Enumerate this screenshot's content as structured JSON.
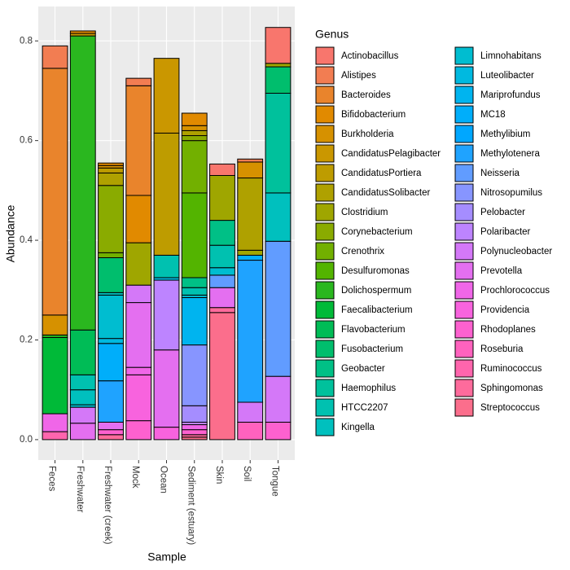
{
  "chart_data": {
    "type": "stacked_bar",
    "x_label": "Sample",
    "y_label": "Abundance",
    "legend_title": "Genus",
    "categories": [
      "Feces",
      "Freshwater",
      "Freshwater (creek)",
      "Mock",
      "Ocean",
      "Sediment (estuary)",
      "Skin",
      "Soil",
      "Tongue"
    ],
    "ylim": [
      -0.041,
      0.869
    ],
    "yticks": [
      {
        "value": 0,
        "label": "0.0"
      },
      {
        "value": 0.2,
        "label": "0.2"
      },
      {
        "value": 0.4,
        "label": "0.4"
      },
      {
        "value": 0.6,
        "label": "0.6"
      },
      {
        "value": 0.8,
        "label": "0.8"
      }
    ],
    "grid": true,
    "series": [
      {
        "name": "Actinobacillus",
        "color": "#F8766D",
        "values": [
          0,
          0,
          0,
          0,
          0,
          0,
          0.023,
          0,
          0.072
        ]
      },
      {
        "name": "Alistipes",
        "color": "#F27D52",
        "values": [
          0.045,
          0,
          0,
          0.015,
          0,
          0,
          0,
          0.006,
          0
        ]
      },
      {
        "name": "Bacteroides",
        "color": "#E9842C",
        "values": [
          0.495,
          0,
          0,
          0.22,
          0,
          0,
          0,
          0,
          0
        ]
      },
      {
        "name": "Bifidobacterium",
        "color": "#E18A00",
        "values": [
          0,
          0.005,
          0.005,
          0.095,
          0,
          0.025,
          0,
          0,
          0
        ]
      },
      {
        "name": "Burkholderia",
        "color": "#D69100",
        "values": [
          0.04,
          0,
          0.005,
          0,
          0,
          0.01,
          0,
          0.032,
          0
        ]
      },
      {
        "name": "CandidatusPelagibacter",
        "color": "#CA9700",
        "values": [
          0,
          0.005,
          0,
          0,
          0.15,
          0,
          0,
          0,
          0
        ]
      },
      {
        "name": "CandidatusPortiera",
        "color": "#BE9C00",
        "values": [
          0,
          0,
          0.01,
          0,
          0.245,
          0,
          0,
          0,
          0
        ]
      },
      {
        "name": "CandidatusSolibacter",
        "color": "#AFA100",
        "values": [
          0,
          0,
          0.025,
          0,
          0,
          0.01,
          0,
          0.145,
          0
        ]
      },
      {
        "name": "Clostridium",
        "color": "#9FA600",
        "values": [
          0,
          0,
          0,
          0.085,
          0,
          0,
          0.09,
          0.01,
          0.007
        ]
      },
      {
        "name": "Corynebacterium",
        "color": "#8AAB00",
        "values": [
          0,
          0,
          0.135,
          0,
          0,
          0.01,
          0,
          0,
          0
        ]
      },
      {
        "name": "Crenothrix",
        "color": "#72B000",
        "values": [
          0,
          0,
          0.01,
          0,
          0,
          0.105,
          0,
          0,
          0
        ]
      },
      {
        "name": "Desulfuromonas",
        "color": "#53B400",
        "values": [
          0,
          0,
          0,
          0,
          0,
          0.17,
          0,
          0,
          0
        ]
      },
      {
        "name": "Dolichospermum",
        "color": "#2AB71F",
        "values": [
          0.005,
          0.59,
          0,
          0,
          0,
          0,
          0,
          0,
          0
        ]
      },
      {
        "name": "Faecalibacterium",
        "color": "#00BA38",
        "values": [
          0.153,
          0,
          0,
          0,
          0,
          0,
          0,
          0,
          0
        ]
      },
      {
        "name": "Flavobacterium",
        "color": "#00BC56",
        "values": [
          0,
          0.09,
          0,
          0,
          0,
          0,
          0,
          0,
          0
        ]
      },
      {
        "name": "Fusobacterium",
        "color": "#00BE6D",
        "values": [
          0,
          0,
          0.07,
          0,
          0,
          0,
          0,
          0,
          0.053
        ]
      },
      {
        "name": "Geobacter",
        "color": "#00C086",
        "values": [
          0,
          0,
          0,
          0,
          0,
          0.02,
          0.05,
          0,
          0
        ]
      },
      {
        "name": "Haemophilus",
        "color": "#00C19C",
        "values": [
          0,
          0,
          0,
          0,
          0,
          0,
          0,
          0,
          0.2
        ]
      },
      {
        "name": "HTCC2207",
        "color": "#00C1B0",
        "values": [
          0,
          0.03,
          0,
          0,
          0.045,
          0.015,
          0.045,
          0,
          0
        ]
      },
      {
        "name": "Kingella",
        "color": "#00C0BE",
        "values": [
          0,
          0.03,
          0.005,
          0,
          0,
          0,
          0,
          0,
          0.097
        ]
      },
      {
        "name": "Limnohabitans",
        "color": "#00BDD0",
        "values": [
          0,
          0.005,
          0.087,
          0,
          0,
          0.005,
          0.015,
          0,
          0
        ]
      },
      {
        "name": "Luteolibacter",
        "color": "#00B9E0",
        "values": [
          0,
          0,
          0.01,
          0,
          0.005,
          0,
          0,
          0,
          0
        ]
      },
      {
        "name": "Mariprofundus",
        "color": "#00B4EF",
        "values": [
          0,
          0,
          0,
          0,
          0,
          0.095,
          0,
          0,
          0
        ]
      },
      {
        "name": "MC18",
        "color": "#00AEFA",
        "values": [
          0,
          0,
          0.075,
          0,
          0,
          0,
          0,
          0.01,
          0
        ]
      },
      {
        "name": "Methylibium",
        "color": "#00A7FF",
        "values": [
          0,
          0,
          0,
          0,
          0,
          0,
          0,
          0,
          0
        ]
      },
      {
        "name": "Methylotenera",
        "color": "#1FA3FF",
        "values": [
          0,
          0,
          0.083,
          0,
          0,
          0,
          0,
          0.285,
          0
        ]
      },
      {
        "name": "Neisseria",
        "color": "#619CFF",
        "values": [
          0,
          0,
          0,
          0,
          0,
          0,
          0.025,
          0,
          0.271
        ]
      },
      {
        "name": "Nitrosopumilus",
        "color": "#8795FF",
        "values": [
          0,
          0,
          0,
          0,
          0,
          0.122,
          0,
          0,
          0
        ]
      },
      {
        "name": "Pelobacter",
        "color": "#A58DFF",
        "values": [
          0,
          0,
          0,
          0,
          0,
          0.033,
          0,
          0,
          0
        ]
      },
      {
        "name": "Polaribacter",
        "color": "#BD84FF",
        "values": [
          0,
          0,
          0,
          0,
          0.14,
          0.005,
          0,
          0,
          0
        ]
      },
      {
        "name": "Polynucleobacter",
        "color": "#D478F8",
        "values": [
          0,
          0.032,
          0,
          0.035,
          0,
          0,
          0,
          0.04,
          0.092
        ]
      },
      {
        "name": "Prevotella",
        "color": "#E46FF0",
        "values": [
          0,
          0.033,
          0.015,
          0.13,
          0.155,
          0,
          0.04,
          0,
          0
        ]
      },
      {
        "name": "Prochlorococcus",
        "color": "#F066E8",
        "values": [
          0.036,
          0,
          0,
          0.015,
          0,
          0.01,
          0,
          0,
          0
        ]
      },
      {
        "name": "Providencia",
        "color": "#F863DE",
        "values": [
          0,
          0,
          0,
          0.092,
          0.025,
          0,
          0,
          0,
          0
        ]
      },
      {
        "name": "Rhodoplanes",
        "color": "#FD61CF",
        "values": [
          0,
          0,
          0.01,
          0.038,
          0,
          0.01,
          0,
          0,
          0.035
        ]
      },
      {
        "name": "Roseburia",
        "color": "#FF62BE",
        "values": [
          0,
          0,
          0,
          0,
          0,
          0,
          0,
          0.035,
          0
        ]
      },
      {
        "name": "Ruminococcus",
        "color": "#FF65AD",
        "values": [
          0.016,
          0,
          0,
          0,
          0,
          0,
          0,
          0,
          0
        ]
      },
      {
        "name": "Sphingomonas",
        "color": "#FE6B9C",
        "values": [
          0,
          0,
          0.01,
          0,
          0,
          0.005,
          0.01,
          0,
          0
        ]
      },
      {
        "name": "Streptococcus",
        "color": "#FB6E8C",
        "values": [
          0,
          0,
          0,
          0,
          0,
          0.005,
          0.255,
          0,
          0
        ]
      }
    ]
  }
}
